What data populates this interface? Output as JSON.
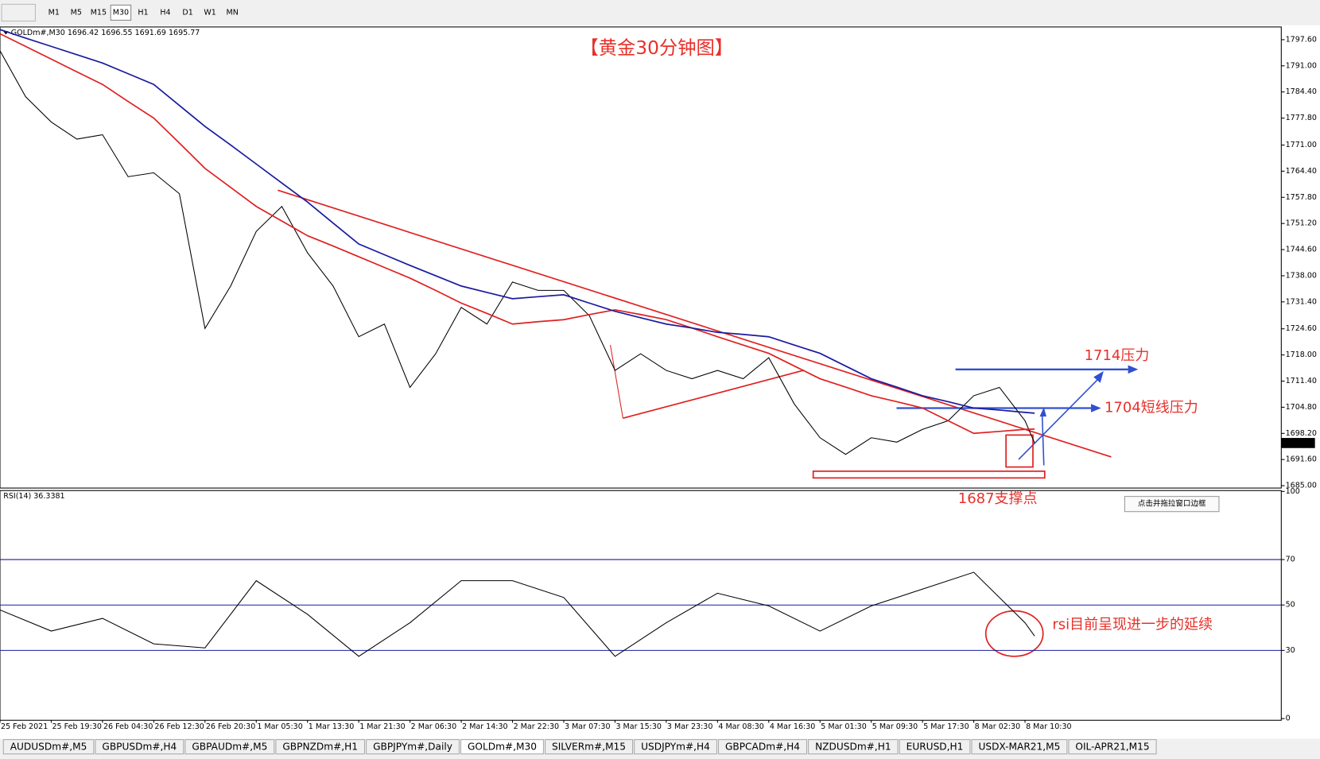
{
  "toolbar": {
    "buttons": [
      "M1",
      "M5",
      "M15",
      "M30",
      "H1",
      "H4",
      "D1",
      "W1",
      "MN"
    ],
    "active": 3
  },
  "chart_data": [
    {
      "type": "line",
      "header": "GOLDm#,M30  1696.42 1696.55 1691.69 1695.77",
      "title": "【黄金30分钟图】",
      "x": [
        0,
        8,
        16,
        24,
        32,
        40,
        48,
        56,
        64,
        72,
        80,
        88,
        96,
        104,
        112,
        120,
        128,
        136,
        144,
        152,
        160,
        168,
        176,
        184,
        192,
        200,
        208,
        216,
        224,
        232,
        240,
        248,
        256,
        264,
        272,
        280,
        288,
        296,
        304,
        312,
        320,
        323
      ],
      "series": [
        {
          "color": "#000000",
          "values": [
            1794.8,
            1783.2,
            1776.8,
            1772.5,
            1773.6,
            1763.0,
            1764.0,
            1758.7,
            1724.7,
            1735.4,
            1749.2,
            1755.5,
            1743.8,
            1735.4,
            1722.6,
            1725.8,
            1709.8,
            1718.3,
            1730.0,
            1725.8,
            1736.4,
            1734.3,
            1734.3,
            1727.9,
            1714.1,
            1718.3,
            1714.1,
            1712.0,
            1714.1,
            1712.0,
            1717.3,
            1705.6,
            1697.1,
            1692.9,
            1697.1,
            1696.0,
            1699.2,
            1701.4,
            1707.7,
            1709.8,
            1701.4,
            1695.77
          ]
        },
        {
          "color": "#e02020",
          "values": [
            1799.1,
            1795.9,
            1792.7,
            1789.5,
            1786.3,
            1782.0,
            1777.8,
            1771.5,
            1765.1,
            1760.3,
            1755.5,
            1751.8,
            1748.1,
            1745.5,
            1742.8,
            1740.1,
            1737.4,
            1734.3,
            1731.1,
            1728.5,
            1725.8,
            1726.4,
            1726.9,
            1728.2,
            1729.4,
            1728.2,
            1726.9,
            1724.8,
            1722.6,
            1720.5,
            1718.4,
            1715.2,
            1712.0,
            1709.9,
            1707.7,
            1706.2,
            1704.6,
            1701.4,
            1698.2,
            1698.7,
            1699.2,
            1699.3
          ]
        },
        {
          "color": "#1a1aa0",
          "values": [
            1800.15,
            1798.0,
            1795.9,
            1793.8,
            1791.7,
            1789.0,
            1786.3,
            1781.0,
            1775.7,
            1771.0,
            1766.2,
            1761.4,
            1756.6,
            1751.3,
            1746.0,
            1743.3,
            1740.6,
            1738.0,
            1735.4,
            1733.8,
            1732.2,
            1732.7,
            1733.2,
            1731.1,
            1729.0,
            1727.4,
            1725.8,
            1724.8,
            1723.7,
            1723.2,
            1722.6,
            1720.5,
            1718.4,
            1715.2,
            1712.0,
            1709.9,
            1707.7,
            1706.2,
            1704.6,
            1704.1,
            1703.5,
            1703.3
          ]
        }
      ],
      "xlim": [
        0,
        400
      ],
      "xticks": [
        {
          "value": 0,
          "label": "25 Feb 2021"
        },
        {
          "value": 16,
          "label": "25 Feb 19:30"
        },
        {
          "value": 32,
          "label": "26 Feb 04:30"
        },
        {
          "value": 48,
          "label": "26 Feb 12:30"
        },
        {
          "value": 64,
          "label": "26 Feb 20:30"
        },
        {
          "value": 80,
          "label": "1 Mar 05:30"
        },
        {
          "value": 96,
          "label": "1 Mar 13:30"
        },
        {
          "value": 112,
          "label": "1 Mar 21:30"
        },
        {
          "value": 128,
          "label": "2 Mar 06:30"
        },
        {
          "value": 144,
          "label": "2 Mar 14:30"
        },
        {
          "value": 160,
          "label": "2 Mar 22:30"
        },
        {
          "value": 176,
          "label": "3 Mar 07:30"
        },
        {
          "value": 192,
          "label": "3 Mar 15:30"
        },
        {
          "value": 208,
          "label": "3 Mar 23:30"
        },
        {
          "value": 224,
          "label": "4 Mar 08:30"
        },
        {
          "value": 240,
          "label": "4 Mar 16:30"
        },
        {
          "value": 256,
          "label": "5 Mar 01:30"
        },
        {
          "value": 272,
          "label": "5 Mar 09:30"
        },
        {
          "value": 288,
          "label": "5 Mar 17:30"
        },
        {
          "value": 304,
          "label": "8 Mar 02:30"
        },
        {
          "value": 320,
          "label": "8 Mar 10:30"
        }
      ],
      "ylim": [
        1684.4,
        1800.6
      ],
      "yticks": [
        {
          "value": 1797.6,
          "label": "1797.60"
        },
        {
          "value": 1791,
          "label": "1791.00"
        },
        {
          "value": 1784.4,
          "label": "1784.40"
        },
        {
          "value": 1777.8,
          "label": "1777.80"
        },
        {
          "value": 1771,
          "label": "1771.00"
        },
        {
          "value": 1764.4,
          "label": "1764.40"
        },
        {
          "value": 1757.8,
          "label": "1757.80"
        },
        {
          "value": 1751.2,
          "label": "1751.20"
        },
        {
          "value": 1744.6,
          "label": "1744.60"
        },
        {
          "value": 1738,
          "label": "1738.00"
        },
        {
          "value": 1731.4,
          "label": "1731.40"
        },
        {
          "value": 1724.6,
          "label": "1724.60"
        },
        {
          "value": 1718,
          "label": "1718.00"
        },
        {
          "value": 1711.4,
          "label": "1711.40"
        },
        {
          "value": 1704.8,
          "label": "1704.80"
        },
        {
          "value": 1698.2,
          "label": "1698.20"
        },
        {
          "value": 1691.6,
          "label": "1691.60"
        },
        {
          "value": 1685,
          "label": "1685.00"
        }
      ],
      "last_price": 1695.77,
      "annotations": [
        "1714压力",
        "1704短线压力",
        "1687支撑点"
      ]
    },
    {
      "type": "line",
      "title": "RSI(14) 36.3381",
      "x": [
        0,
        16,
        32,
        48,
        64,
        80,
        96,
        112,
        128,
        144,
        160,
        176,
        192,
        208,
        224,
        240,
        256,
        272,
        288,
        304,
        320,
        323
      ],
      "series": [
        {
          "color": "#000000",
          "values": [
            47.8,
            38.5,
            44.1,
            32.9,
            31.1,
            60.7,
            45.9,
            27.4,
            42.2,
            60.7,
            60.7,
            53.3,
            27.4,
            42.2,
            55.2,
            49.6,
            38.5,
            49.6,
            57.0,
            64.4,
            42.2,
            36.3381
          ]
        }
      ],
      "xlim": [
        0,
        400
      ],
      "ylim": [
        0,
        100
      ],
      "yticks": [
        100,
        70,
        50,
        30,
        0
      ],
      "level_color": "#1a1aa0",
      "annotations": [
        "rsi目前呈现进一步的延续"
      ]
    }
  ],
  "tooltip": "点击并拖拉窗口边框",
  "tabs": {
    "items": [
      "AUDUSDm#,M5",
      "GBPUSDm#,H4",
      "GBPAUDm#,M5",
      "GBPNZDm#,H1",
      "GBPJPYm#,Daily",
      "GOLDm#,M30",
      "SILVERm#,M15",
      "USDJPYm#,H4",
      "GBPCADm#,H4",
      "NZDUSDm#,H1",
      "EURUSD,H1",
      "USDX-MAR21,M5",
      "OIL-APR21,M15"
    ],
    "active": 5
  }
}
